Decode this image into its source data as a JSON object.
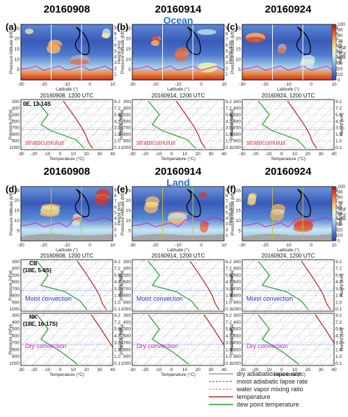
{
  "columns": [
    {
      "date": "20160908",
      "skewt_time": "20160908, 1200 UTC"
    },
    {
      "date": "20160914",
      "skewt_time": "20160914, 1200 UTC"
    },
    {
      "date": "20160924",
      "skewt_time": "20160924, 1200 UTC"
    }
  ],
  "ocean": {
    "region_label": "Ocean",
    "panels": [
      "(a)",
      "(b)",
      "(c)"
    ],
    "site_label": "0E, 13-14S",
    "regime_label": "stratocumulus"
  },
  "land": {
    "region_label": "Land",
    "panels": [
      "(d)",
      "(e)",
      "(f)"
    ],
    "site1_name": "CB",
    "site1_coords": "(18E, 5-6S)",
    "site1_regime": "Moist convection",
    "site2_name": "NK",
    "site2_coords": "(18E, 16-17S)",
    "site2_regime": "Dry convection"
  },
  "cross_section": {
    "ylabel_left": "Pressure Altitude (kft)",
    "ylabel_right": "Height (km)",
    "xlabel": "Latitude (°)",
    "x_ticks": [
      "-30",
      "-20",
      "-10",
      "0",
      "10"
    ],
    "y_ticks_kft": [
      "5",
      "10",
      "15",
      "20",
      "25"
    ],
    "y_ticks_km": [
      "1",
      "2",
      "3",
      "4",
      "5",
      "6",
      "7",
      "8",
      "9"
    ],
    "colorbar_ticks": [
      "0",
      "10",
      "20",
      "30",
      "40",
      "50",
      "60",
      "70",
      "80",
      "90",
      "100"
    ],
    "colorbar_unit": "RH, %",
    "colormap": [
      "#2a3f9e",
      "#4f7ad0",
      "#8db8e8",
      "#d4ecf2",
      "#f5f0b0",
      "#f9c06a",
      "#ef7a3c",
      "#d63a2a",
      "#a01010"
    ]
  },
  "skewt": {
    "ylabel_left": "Pressure (hPa)",
    "ylabel_right": "Height (km)",
    "xlabel": "Temperature (°C)",
    "x_ticks": [
      "-30",
      "-20",
      "-10",
      "0",
      "10",
      "20",
      "30",
      "40"
    ],
    "p_ticks": [
      "300",
      "400",
      "500",
      "600",
      "700",
      "800",
      "900",
      "1000"
    ],
    "h_ticks": [
      "9.2",
      "7.2",
      "5.6",
      "4.2",
      "3.0",
      "1.9",
      "1.0",
      "0.1"
    ]
  },
  "legend": [
    {
      "label": "dry adiabatic lapse rate",
      "color": "#9a9a9a",
      "dash": ""
    },
    {
      "label": "moist adiabatic lapse rate",
      "color": "#5a8fd0",
      "dash": "3,2"
    },
    {
      "label": "water vapor mixing ratio",
      "color": "#e09090",
      "dash": "3,2"
    },
    {
      "label": "temperature",
      "color": "#b82020",
      "dash": ""
    },
    {
      "label": "dew point temperature",
      "color": "#20a020",
      "dash": ""
    }
  ]
}
